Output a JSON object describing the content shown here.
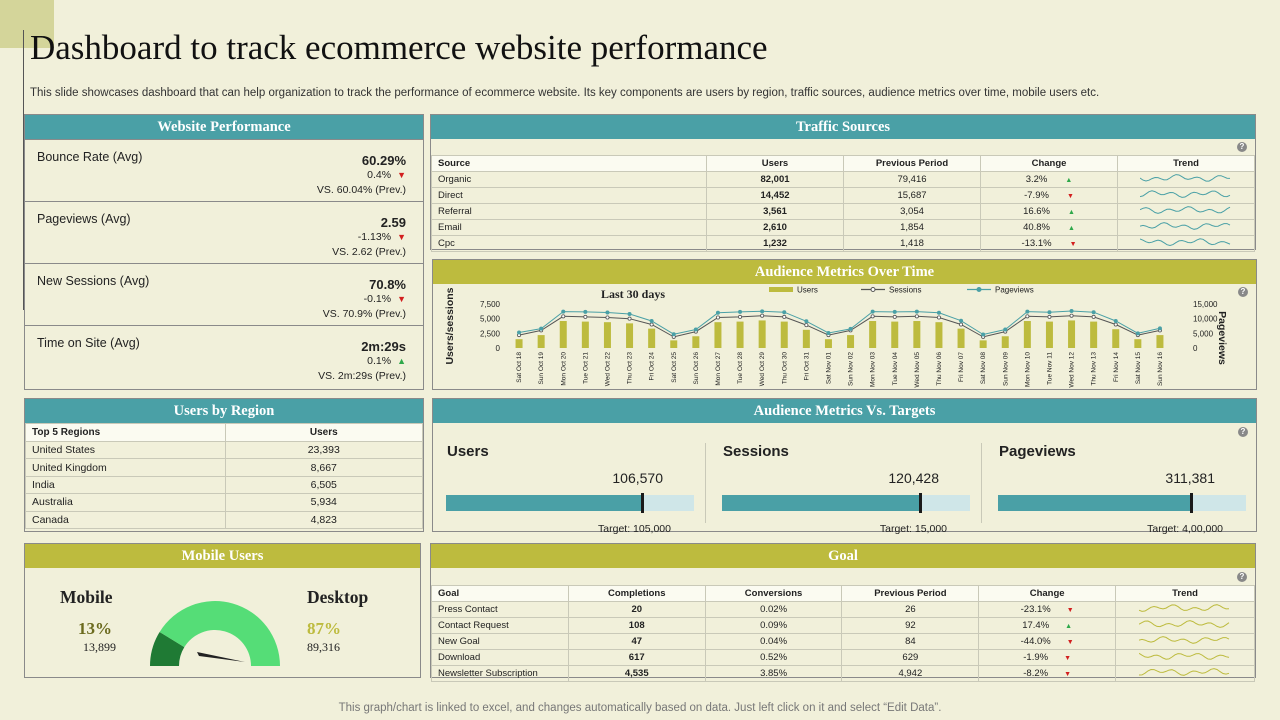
{
  "title": "Dashboard to track ecommerce website performance",
  "subtitle": "This slide showcases dashboard that can help organization to track the performance of ecommerce website. Its key components are users by region, traffic sources, audience metrics over time, mobile users etc.",
  "footer": "This graph/chart is linked to excel,  and changes automatically based on data. Just left click on it and select “Edit Data”.",
  "help_icon": "?",
  "website_performance": {
    "title": "Website Performance",
    "items": [
      {
        "label": "Bounce Rate (Avg)",
        "value": "60.29%",
        "change": "0.4%",
        "direction": "down",
        "prev": "VS. 60.04% (Prev.)"
      },
      {
        "label": "Pageviews  (Avg)",
        "value": "2.59",
        "change": "-1.13%",
        "direction": "down",
        "prev": "VS. 2.62 (Prev.)"
      },
      {
        "label": "New Sessions (Avg)",
        "value": "70.8%",
        "change": "-0.1%",
        "direction": "down",
        "prev": "VS. 70.9% (Prev.)"
      },
      {
        "label": "Time on Site (Avg)",
        "value": "2m:29s",
        "change": "0.1%",
        "direction": "up",
        "prev": "VS. 2m:29s (Prev.)"
      }
    ]
  },
  "traffic_sources": {
    "title": "Traffic Sources",
    "columns": [
      "Source",
      "Users",
      "Previous Period",
      "Change",
      "Trend"
    ],
    "rows": [
      {
        "source": "Organic",
        "users": "82,001",
        "prev": "79,416",
        "change": "3.2%",
        "direction": "up"
      },
      {
        "source": "Direct",
        "users": "14,452",
        "prev": "15,687",
        "change": "-7.9%",
        "direction": "down"
      },
      {
        "source": "Referral",
        "users": "3,561",
        "prev": "3,054",
        "change": "16.6%",
        "direction": "up"
      },
      {
        "source": "Email",
        "users": "2,610",
        "prev": "1,854",
        "change": "40.8%",
        "direction": "up"
      },
      {
        "source": "Cpc",
        "users": "1,232",
        "prev": "1,418",
        "change": "-13.1%",
        "direction": "down"
      }
    ]
  },
  "audience_time": {
    "title": "Audience Metrics Over Time",
    "chart_title": "Last 30 days",
    "ylabel_left": "Users/sessions",
    "ylabel_right": "Pageviews",
    "legend": {
      "users": "Users",
      "sessions": "Sessions",
      "pageviews": "Pageviews"
    }
  },
  "chart_data": {
    "type": "bar",
    "title": "Last 30 days",
    "ylabel": "Users/sessions",
    "y2label": "Pageviews",
    "ylim": [
      0,
      7500
    ],
    "y2lim": [
      0,
      15000
    ],
    "yticks": [
      "7,500",
      "5,000",
      "2,500",
      "0"
    ],
    "y2ticks": [
      "15,000",
      "10,000",
      "5,000",
      "0"
    ],
    "categories": [
      "Sat Oct 18",
      "Sun Oct 19",
      "Mon Oct 20",
      "Tue Oct 21",
      "Wed Oct 22",
      "Thu Oct 23",
      "Fri Oct 24",
      "Sat Oct 25",
      "Sun Oct 26",
      "Mon Oct 27",
      "Tue Oct 28",
      "Wed Oct 29",
      "Thu Oct 30",
      "Fri Oct 31",
      "Sat Nov 01",
      "Sun Nov 02",
      "Mon Nov 03",
      "Tue Nov 04",
      "Wed Nov 05",
      "Thu Nov 06",
      "Fri Nov 07",
      "Sat Nov 08",
      "Sun Nov 09",
      "Mon Nov 10",
      "Tue Nov 11",
      "Wed Nov 12",
      "Thu Nov 13",
      "Fri Nov 14",
      "Sat Nov 15",
      "Sun Nov 16"
    ],
    "series": [
      {
        "name": "Users",
        "type": "bar",
        "values": [
          1500,
          2200,
          4600,
          4500,
          4400,
          4200,
          3300,
          1300,
          2000,
          4400,
          4500,
          4700,
          4500,
          3100,
          1500,
          2200,
          4600,
          4500,
          4600,
          4400,
          3300,
          1300,
          2000,
          4600,
          4500,
          4700,
          4500,
          3200,
          1500,
          2200
        ]
      },
      {
        "name": "Sessions",
        "type": "line",
        "values": [
          2200,
          3000,
          5400,
          5300,
          5200,
          5000,
          4000,
          1900,
          2800,
          5200,
          5300,
          5500,
          5300,
          3900,
          2200,
          3000,
          5400,
          5300,
          5400,
          5200,
          4000,
          1900,
          2800,
          5400,
          5300,
          5500,
          5300,
          4000,
          2200,
          3000
        ]
      },
      {
        "name": "Pageviews",
        "type": "line",
        "axis": "right",
        "values": [
          5300,
          6600,
          12400,
          12300,
          12100,
          11600,
          9200,
          4700,
          6300,
          12000,
          12300,
          12500,
          12200,
          9100,
          5100,
          6500,
          12400,
          12300,
          12400,
          12000,
          9300,
          4600,
          6300,
          12400,
          12200,
          12600,
          12200,
          9200,
          5000,
          6700
        ]
      }
    ],
    "legend": "top"
  },
  "users_by_region": {
    "title": "Users by Region",
    "columns": [
      "Top 5 Regions",
      "Users"
    ],
    "rows": [
      {
        "region": "United States",
        "users": "23,393"
      },
      {
        "region": "United Kingdom",
        "users": "8,667"
      },
      {
        "region": "India",
        "users": "6,505"
      },
      {
        "region": "Australia",
        "users": "5,934"
      },
      {
        "region": "Canada",
        "users": "4,823"
      }
    ]
  },
  "audience_targets": {
    "title": "Audience Metrics Vs. Targets",
    "items": [
      {
        "name": "Users",
        "value": "106,570",
        "target": "Target: 105,000",
        "fill": 0.79
      },
      {
        "name": "Sessions",
        "value": "120,428",
        "target": "Target: 15,000",
        "fill": 0.8
      },
      {
        "name": "Pageviews",
        "value": "311,381",
        "target": "Target: 4,00,000",
        "fill": 0.78
      }
    ]
  },
  "mobile_users": {
    "title": "Mobile Users",
    "mobile_label": "Mobile",
    "mobile_pct": "13%",
    "mobile_count": "13,899",
    "desktop_label": "Desktop",
    "desktop_pct": "87%",
    "desktop_count": "89,316",
    "mobile_share": 0.13,
    "colors": {
      "mobile": "#1f7a34",
      "desktop": "#55dd77",
      "mobile_pct": "#6b6a1e",
      "desktop_pct": "#bdbb3e"
    }
  },
  "goal": {
    "title": "Goal",
    "columns": [
      "Goal",
      "Completions",
      "Conversions",
      "Previous Period",
      "Change",
      "Trend"
    ],
    "rows": [
      {
        "goal": "Press Contact",
        "completions": "20",
        "conversions": "0.02%",
        "prev": "26",
        "change": "-23.1%",
        "direction": "down"
      },
      {
        "goal": "Contact Request",
        "completions": "108",
        "conversions": "0.09%",
        "prev": "92",
        "change": "17.4%",
        "direction": "up"
      },
      {
        "goal": "New Goal",
        "completions": "47",
        "conversions": "0.04%",
        "prev": "84",
        "change": "-44.0%",
        "direction": "down"
      },
      {
        "goal": "Download",
        "completions": "617",
        "conversions": "0.52%",
        "prev": "629",
        "change": "-1.9%",
        "direction": "down"
      },
      {
        "goal": "Newsletter Subscription",
        "completions": "4,535",
        "conversions": "3.85%",
        "prev": "4,942",
        "change": "-8.2%",
        "direction": "down"
      }
    ]
  },
  "colors": {
    "teal": "#4aa0a6",
    "olive": "#bdbb3e",
    "up": "#2ea84a",
    "down": "#d21f1f",
    "background": "#f1f0da"
  }
}
